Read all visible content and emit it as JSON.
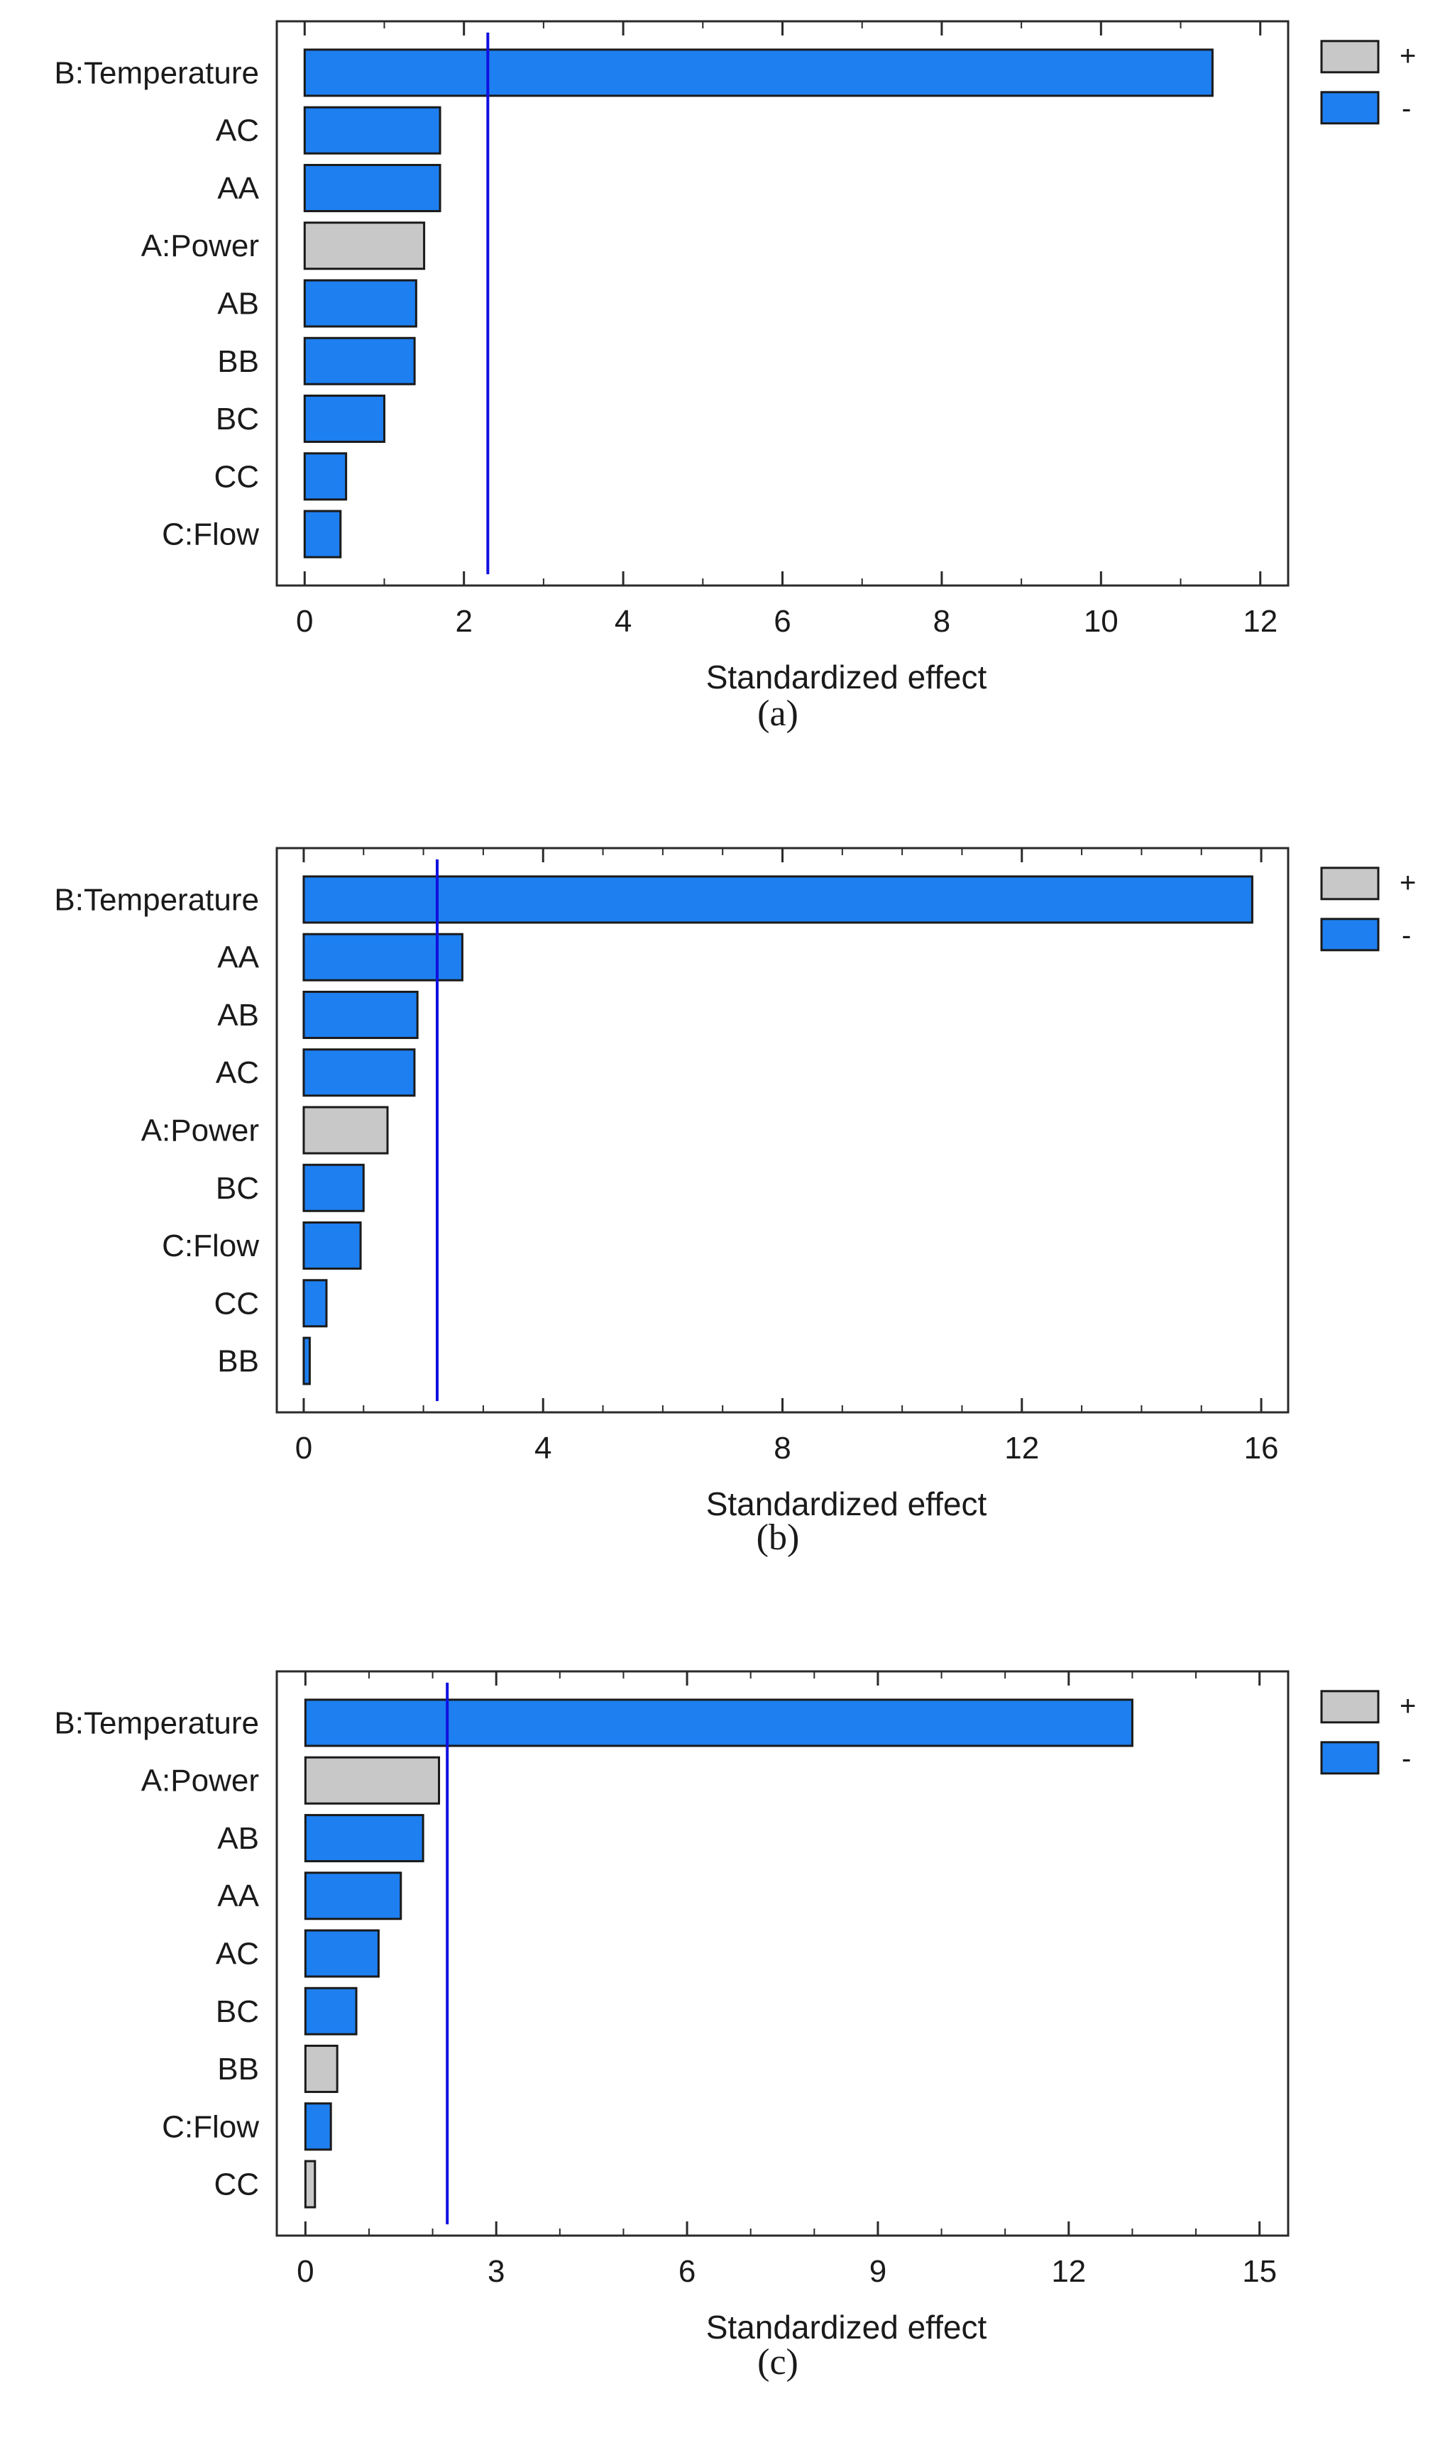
{
  "figure": {
    "legend": {
      "positive_label": "+",
      "negative_label": "-"
    },
    "colors": {
      "positive": "#c8c8c8",
      "negative": "#1e7ff0",
      "reference_line": "#1010e0",
      "bar_outline": "#1a1a1a"
    }
  },
  "chart_data": [
    {
      "type": "bar",
      "orientation": "horizontal",
      "panel_label": "(a)",
      "xlabel": "Standardized effect",
      "xlim": [
        -0.35,
        12.35
      ],
      "xticks": [
        0,
        2,
        4,
        6,
        8,
        10,
        12
      ],
      "xtick_labels": [
        "0",
        "2",
        "4",
        "6",
        "8",
        "10",
        "12"
      ],
      "minor_step": 1,
      "reference_line": 2.3,
      "categories": [
        "B:Temperature",
        "AC",
        "AA",
        "A:Power",
        "AB",
        "BB",
        "BC",
        "CC",
        "C:Flow"
      ],
      "values": [
        11.4,
        1.7,
        1.7,
        1.5,
        1.4,
        1.38,
        1.0,
        0.52,
        0.45
      ],
      "signs": [
        "-",
        "-",
        "-",
        "+",
        "-",
        "-",
        "-",
        "-",
        "-"
      ]
    },
    {
      "type": "bar",
      "orientation": "horizontal",
      "panel_label": "(b)",
      "xlabel": "Standardized effect",
      "xlim": [
        -0.45,
        16.45
      ],
      "xticks": [
        0,
        4,
        8,
        12,
        16
      ],
      "xtick_labels": [
        "0",
        "4",
        "8",
        "12",
        "16"
      ],
      "minor_step": 1,
      "reference_line": 2.23,
      "categories": [
        "B:Temperature",
        "AA",
        "AB",
        "AC",
        "A:Power",
        "BC",
        "C:Flow",
        "CC",
        "BB"
      ],
      "values": [
        15.85,
        2.65,
        1.9,
        1.85,
        1.4,
        1.0,
        0.95,
        0.38,
        0.1
      ],
      "signs": [
        "-",
        "-",
        "-",
        "-",
        "+",
        "-",
        "-",
        "-",
        "-"
      ]
    },
    {
      "type": "bar",
      "orientation": "horizontal",
      "panel_label": "(c)",
      "xlabel": "Standardized effect",
      "xlim": [
        -0.45,
        15.45
      ],
      "xticks": [
        0,
        3,
        6,
        9,
        12,
        15
      ],
      "xtick_labels": [
        "0",
        "3",
        "6",
        "9",
        "12",
        "15"
      ],
      "minor_step": 1,
      "reference_line": 2.23,
      "categories": [
        "B:Temperature",
        "A:Power",
        "AB",
        "AA",
        "AC",
        "BC",
        "BB",
        "C:Flow",
        "CC"
      ],
      "values": [
        13.0,
        2.1,
        1.85,
        1.5,
        1.15,
        0.8,
        0.5,
        0.4,
        0.15
      ],
      "signs": [
        "-",
        "+",
        "-",
        "-",
        "-",
        "-",
        "+",
        "-",
        "+"
      ]
    }
  ]
}
